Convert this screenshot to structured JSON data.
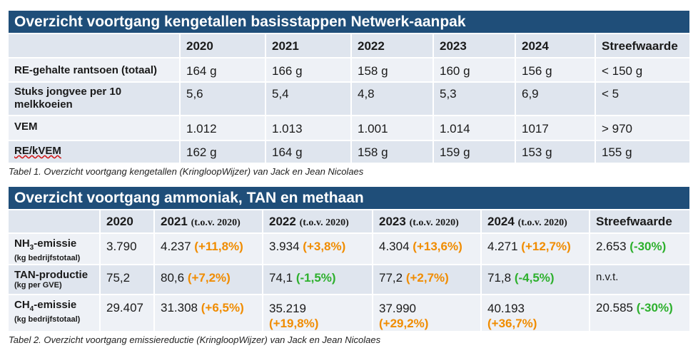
{
  "table1": {
    "title": "Overzicht voortgang kengetallen basisstappen Netwerk-aanpak",
    "headers": [
      "",
      "2020",
      "2021",
      "2022",
      "2023",
      "2024",
      "Streefwaarde"
    ],
    "rows": [
      {
        "label": "RE-gehalte rantsoen (totaal)",
        "values": [
          "164 g",
          "166 g",
          "158 g",
          "160 g",
          "156 g",
          "< 150 g"
        ]
      },
      {
        "label": "Stuks jongvee per 10 melkkoeien",
        "values": [
          "5,6",
          "5,4",
          "4,8",
          "5,3",
          "6,9",
          "< 5"
        ]
      },
      {
        "label": "VEM",
        "values": [
          "1.012",
          "1.013",
          "1.001",
          "1.014",
          "1017",
          "> 970"
        ]
      },
      {
        "label": "RE/kVEM",
        "values": [
          "162 g",
          "164 g",
          "158 g",
          "159 g",
          "153 g",
          "155 g"
        ]
      }
    ],
    "caption": "Tabel 1. Overzicht voortgang kengetallen (KringloopWijzer) van Jack en Jean Nicolaes"
  },
  "table2": {
    "title": "Overzicht voortgang ammoniak, TAN en methaan",
    "headers": [
      {
        "year": "",
        "tov": ""
      },
      {
        "year": "2020",
        "tov": ""
      },
      {
        "year": "2021",
        "tov": "(t.o.v. 2020)"
      },
      {
        "year": "2022",
        "tov": "(t.o.v. 2020)"
      },
      {
        "year": "2023",
        "tov": "(t.o.v. 2020)"
      },
      {
        "year": "2024",
        "tov": "(t.o.v. 2020)"
      },
      {
        "year": "Streefwaarde",
        "tov": ""
      }
    ],
    "rows": [
      {
        "label_pre": "NH",
        "label_sub": "3",
        "label_post": "-emissie",
        "unit": "(kg bedrijfstotaal)",
        "cells": [
          {
            "value": "3.790",
            "change": ""
          },
          {
            "value": "4.237",
            "change": "(+11,8%)"
          },
          {
            "value": "3.934",
            "change": "(+3,8%)"
          },
          {
            "value": "4.304",
            "change": "(+13,6%)"
          },
          {
            "value": "4.271",
            "change": "(+12,7%)"
          },
          {
            "value": "2.653",
            "change": "(-30%)"
          }
        ]
      },
      {
        "label_pre": "TAN-productie",
        "label_sub": "",
        "label_post": "",
        "unit": "(kg per GVE)",
        "cells": [
          {
            "value": "75,2",
            "change": ""
          },
          {
            "value": "80,6",
            "change": "(+7,2%)"
          },
          {
            "value": "74,1",
            "change": "(-1,5%)"
          },
          {
            "value": "77,2",
            "change": "(+2,7%)"
          },
          {
            "value": "71,8",
            "change": "(-4,5%)"
          },
          {
            "value": "n.v.t.",
            "change": ""
          }
        ]
      },
      {
        "label_pre": "CH",
        "label_sub": "4",
        "label_post": "-emissie",
        "unit": "(kg bedrijfstotaal)",
        "cells": [
          {
            "value": "29.407",
            "change": ""
          },
          {
            "value": "31.308",
            "change": "(+6,5%)"
          },
          {
            "value": "35.219",
            "change": "(+19,8%)"
          },
          {
            "value": "37.990",
            "change": "(+29,2%)"
          },
          {
            "value": "40.193",
            "change": "(+36,7%)"
          },
          {
            "value": "20.585",
            "change": "(-30%)"
          }
        ]
      }
    ],
    "caption": "Tabel 2. Overzicht voortgang emissiereductie (KringloopWijzer) van Jack en Jean Nicolaes"
  },
  "colors": {
    "header_blue": "#1f4e79",
    "row_light": "#dfe5ee",
    "row_lighter": "#eef1f6",
    "increase": "#f08c00",
    "decrease": "#2db02d"
  }
}
